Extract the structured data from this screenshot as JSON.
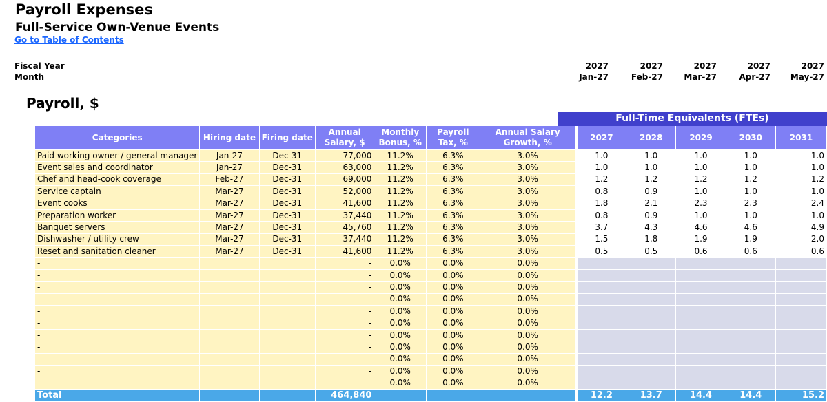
{
  "header": {
    "title": "Payroll Expenses",
    "subtitle": "Full-Service Own-Venue Events",
    "toc_link": "Go to Table of Contents",
    "fiscal_year_label": "Fiscal Year",
    "month_label": "Month",
    "periods": [
      {
        "year": "2027",
        "month": "Jan-27"
      },
      {
        "year": "2027",
        "month": "Feb-27"
      },
      {
        "year": "2027",
        "month": "Mar-27"
      },
      {
        "year": "2027",
        "month": "Apr-27"
      },
      {
        "year": "2027",
        "month": "May-27"
      }
    ]
  },
  "section_title": "Payroll, $",
  "fte_banner": "Full-Time Equivalents (FTEs)",
  "columns": {
    "categories": "Categories",
    "hiring_date": "Hiring date",
    "firing_date": "Firing date",
    "annual_salary": "Annual Salary, $",
    "monthly_bonus": "Monthly Bonus, %",
    "payroll_tax": "Payroll Tax, %",
    "salary_growth": "Annual Salary Growth, %",
    "fte_years": [
      "2027",
      "2028",
      "2029",
      "2030",
      "2031"
    ]
  },
  "rows": [
    {
      "category": "Paid working owner / general manager",
      "hiring": "Jan-27",
      "firing": "Dec-31",
      "salary": "77,000",
      "bonus": "11.2%",
      "tax": "6.3%",
      "growth": "3.0%",
      "fte": [
        "1.0",
        "1.0",
        "1.0",
        "1.0",
        "1.0"
      ]
    },
    {
      "category": "Event sales and coordinator",
      "hiring": "Jan-27",
      "firing": "Dec-31",
      "salary": "63,000",
      "bonus": "11.2%",
      "tax": "6.3%",
      "growth": "3.0%",
      "fte": [
        "1.0",
        "1.0",
        "1.0",
        "1.0",
        "1.0"
      ]
    },
    {
      "category": "Chef and head-cook coverage",
      "hiring": "Feb-27",
      "firing": "Dec-31",
      "salary": "69,000",
      "bonus": "11.2%",
      "tax": "6.3%",
      "growth": "3.0%",
      "fte": [
        "1.2",
        "1.2",
        "1.2",
        "1.2",
        "1.2"
      ]
    },
    {
      "category": "Service captain",
      "hiring": "Mar-27",
      "firing": "Dec-31",
      "salary": "52,000",
      "bonus": "11.2%",
      "tax": "6.3%",
      "growth": "3.0%",
      "fte": [
        "0.8",
        "0.9",
        "1.0",
        "1.0",
        "1.0"
      ]
    },
    {
      "category": "Event cooks",
      "hiring": "Mar-27",
      "firing": "Dec-31",
      "salary": "41,600",
      "bonus": "11.2%",
      "tax": "6.3%",
      "growth": "3.0%",
      "fte": [
        "1.8",
        "2.1",
        "2.3",
        "2.3",
        "2.4"
      ]
    },
    {
      "category": "Preparation worker",
      "hiring": "Mar-27",
      "firing": "Dec-31",
      "salary": "37,440",
      "bonus": "11.2%",
      "tax": "6.3%",
      "growth": "3.0%",
      "fte": [
        "0.8",
        "0.9",
        "1.0",
        "1.0",
        "1.0"
      ]
    },
    {
      "category": "Banquet servers",
      "hiring": "Mar-27",
      "firing": "Dec-31",
      "salary": "45,760",
      "bonus": "11.2%",
      "tax": "6.3%",
      "growth": "3.0%",
      "fte": [
        "3.7",
        "4.3",
        "4.6",
        "4.6",
        "4.9"
      ]
    },
    {
      "category": "Dishwasher / utility crew",
      "hiring": "Mar-27",
      "firing": "Dec-31",
      "salary": "37,440",
      "bonus": "11.2%",
      "tax": "6.3%",
      "growth": "3.0%",
      "fte": [
        "1.5",
        "1.8",
        "1.9",
        "1.9",
        "2.0"
      ]
    },
    {
      "category": "Reset and sanitation cleaner",
      "hiring": "Mar-27",
      "firing": "Dec-31",
      "salary": "41,600",
      "bonus": "11.2%",
      "tax": "6.3%",
      "growth": "3.0%",
      "fte": [
        "0.5",
        "0.5",
        "0.6",
        "0.6",
        "0.6"
      ]
    },
    {
      "category": "-",
      "hiring": "",
      "firing": "",
      "salary": "-",
      "bonus": "0.0%",
      "tax": "0.0%",
      "growth": "0.0%",
      "fte": [
        "",
        "",
        "",
        "",
        ""
      ]
    },
    {
      "category": "-",
      "hiring": "",
      "firing": "",
      "salary": "-",
      "bonus": "0.0%",
      "tax": "0.0%",
      "growth": "0.0%",
      "fte": [
        "",
        "",
        "",
        "",
        ""
      ]
    },
    {
      "category": "-",
      "hiring": "",
      "firing": "",
      "salary": "-",
      "bonus": "0.0%",
      "tax": "0.0%",
      "growth": "0.0%",
      "fte": [
        "",
        "",
        "",
        "",
        ""
      ]
    },
    {
      "category": "-",
      "hiring": "",
      "firing": "",
      "salary": "-",
      "bonus": "0.0%",
      "tax": "0.0%",
      "growth": "0.0%",
      "fte": [
        "",
        "",
        "",
        "",
        ""
      ]
    },
    {
      "category": "-",
      "hiring": "",
      "firing": "",
      "salary": "-",
      "bonus": "0.0%",
      "tax": "0.0%",
      "growth": "0.0%",
      "fte": [
        "",
        "",
        "",
        "",
        ""
      ]
    },
    {
      "category": "-",
      "hiring": "",
      "firing": "",
      "salary": "-",
      "bonus": "0.0%",
      "tax": "0.0%",
      "growth": "0.0%",
      "fte": [
        "",
        "",
        "",
        "",
        ""
      ]
    },
    {
      "category": "-",
      "hiring": "",
      "firing": "",
      "salary": "-",
      "bonus": "0.0%",
      "tax": "0.0%",
      "growth": "0.0%",
      "fte": [
        "",
        "",
        "",
        "",
        ""
      ]
    },
    {
      "category": "-",
      "hiring": "",
      "firing": "",
      "salary": "-",
      "bonus": "0.0%",
      "tax": "0.0%",
      "growth": "0.0%",
      "fte": [
        "",
        "",
        "",
        "",
        ""
      ]
    },
    {
      "category": "-",
      "hiring": "",
      "firing": "",
      "salary": "-",
      "bonus": "0.0%",
      "tax": "0.0%",
      "growth": "0.0%",
      "fte": [
        "",
        "",
        "",
        "",
        ""
      ]
    },
    {
      "category": "-",
      "hiring": "",
      "firing": "",
      "salary": "-",
      "bonus": "0.0%",
      "tax": "0.0%",
      "growth": "0.0%",
      "fte": [
        "",
        "",
        "",
        "",
        ""
      ]
    },
    {
      "category": "-",
      "hiring": "",
      "firing": "",
      "salary": "-",
      "bonus": "0.0%",
      "tax": "0.0%",
      "growth": "0.0%",
      "fte": [
        "",
        "",
        "",
        "",
        ""
      ]
    }
  ],
  "total": {
    "label": "Total",
    "salary": "464,840",
    "fte": [
      "12.2",
      "13.7",
      "14.4",
      "14.4",
      "15.2"
    ]
  },
  "colors": {
    "header_fill": "#7f7ff5",
    "banner_fill": "#4040cc",
    "input_fill": "#fff4c2",
    "total_fill": "#4aa8e8",
    "empty_fte_fill": "#d8daea",
    "link": "#1a66ff"
  }
}
